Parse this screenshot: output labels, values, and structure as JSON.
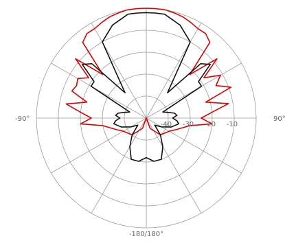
{
  "chart_data": {
    "type": "polar",
    "title": "",
    "angle_labels": {
      "left": "-90°",
      "right": "90°",
      "bottom": "-180/180°"
    },
    "radial_labels": [
      "-40",
      "-30",
      "-20",
      "-10"
    ],
    "radial_range_db": [
      -50,
      0
    ],
    "radial_ticks_db": [
      -50,
      -40,
      -30,
      -20,
      -10,
      0
    ],
    "spokes_every_deg": 30,
    "grid": true,
    "legend": "none",
    "series": [
      {
        "color": "#e00000",
        "angle_deg": [
          -180,
          -160,
          -140,
          -120,
          -110,
          -100,
          -95,
          -90,
          -85,
          -80,
          -75,
          -70,
          -65,
          -60,
          -55,
          -50,
          -45,
          -40,
          -35,
          -30,
          -25,
          -20,
          -15,
          -10,
          -5,
          0,
          5,
          10,
          15,
          20,
          25,
          30,
          35,
          40,
          45,
          50,
          55,
          60,
          65,
          70,
          75,
          80,
          85,
          90,
          95,
          100,
          110,
          120,
          140,
          160,
          180
        ],
        "gain_db": [
          -50,
          -45,
          -40,
          -38,
          -35,
          -30,
          -20,
          -25,
          -20,
          -13,
          -22,
          -14,
          -15,
          -14,
          -18,
          -8,
          -22,
          -5,
          -3,
          -3,
          -2,
          -1,
          -0.5,
          0,
          0,
          0,
          0,
          0,
          -0.5,
          -1,
          -2,
          -3,
          -3,
          -5,
          -22,
          -8,
          -18,
          -11,
          -15,
          -9,
          -22,
          -12,
          -20,
          -25,
          -20,
          -30,
          -35,
          -38,
          -40,
          -45,
          -50
        ]
      },
      {
        "color": "#111111",
        "angle_deg": [
          -180,
          -170,
          -160,
          -150,
          -140,
          -130,
          -120,
          -110,
          -100,
          -95,
          -90,
          -85,
          -80,
          -75,
          -70,
          -60,
          -55,
          -50,
          -45,
          -40,
          -30,
          -20,
          -10,
          -5,
          0,
          5,
          10,
          20,
          30,
          40,
          45,
          50,
          55,
          60,
          70,
          75,
          80,
          85,
          90,
          95,
          100,
          110,
          120,
          130,
          140,
          150,
          160,
          170,
          180
        ],
        "gain_db": [
          -32,
          -30,
          -30,
          -35,
          -40,
          -45,
          -42,
          -38,
          -35,
          -36,
          -38,
          -36,
          -37,
          -40,
          -42,
          -21,
          -21,
          -12,
          -15,
          -35,
          -10,
          -5,
          -2,
          -2,
          -2,
          -2,
          -2,
          -5,
          -10,
          -35,
          -15,
          -12,
          -21,
          -21,
          -42,
          -40,
          -37,
          -36,
          -38,
          -36,
          -35,
          -38,
          -42,
          -45,
          -40,
          -35,
          -30,
          -30,
          -32
        ]
      }
    ]
  }
}
